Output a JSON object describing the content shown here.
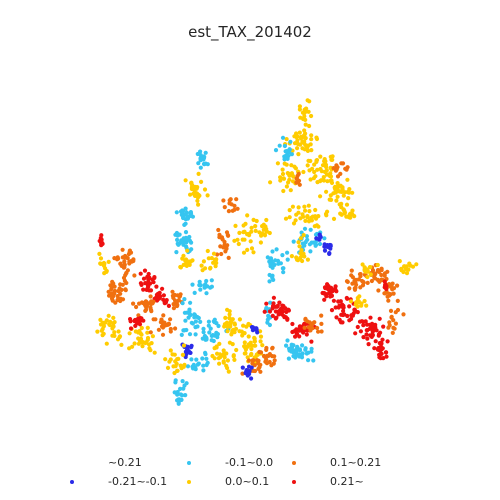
{
  "title": "est_TAX_201402",
  "legend": [
    {
      "label": "~0.21",
      "color": "#ffffff"
    },
    {
      "label": "-0.21~-0.1",
      "color": "#2b2be8"
    },
    {
      "label": "-0.1~0.0",
      "color": "#36c5f0"
    },
    {
      "label": "0.0~0.1",
      "color": "#ffcc00"
    },
    {
      "label": "0.1~0.21",
      "color": "#f07010"
    },
    {
      "label": "0.21~",
      "color": "#ee1111"
    }
  ],
  "chart_data": {
    "type": "scatter",
    "title": "est_TAX_201402",
    "axes_visible": false,
    "grid": false,
    "legend_position": "bottom",
    "classes": [
      "~0.21",
      "-0.21~-0.1",
      "-0.1~0.0",
      "0.0~0.1",
      "0.1~0.21",
      "0.21~"
    ]
  }
}
